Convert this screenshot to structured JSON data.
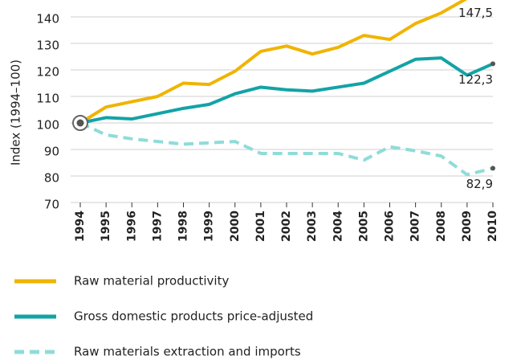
{
  "chart_data": {
    "type": "line",
    "y_label": "Index (1994–100)",
    "x": [
      "1994",
      "1995",
      "1996",
      "1997",
      "1998",
      "1999",
      "2000",
      "2001",
      "2002",
      "2003",
      "2004",
      "2005",
      "2006",
      "2007",
      "2008",
      "2009",
      "2010"
    ],
    "ylim": [
      70,
      150
    ],
    "yticks": [
      70,
      80,
      90,
      100,
      110,
      120,
      130,
      140
    ],
    "grid": true,
    "series": [
      {
        "name": "Raw material productivity",
        "color": "#f0b400",
        "dash": false,
        "values": [
          100,
          106,
          108,
          110,
          115,
          114.5,
          119.5,
          127,
          129,
          126,
          128.5,
          133,
          131.5,
          137.5,
          141.5,
          147,
          147.5
        ],
        "value_labels": [
          null,
          null,
          null,
          null,
          null,
          null,
          null,
          null,
          null,
          null,
          null,
          null,
          null,
          null,
          null,
          null,
          "147,5"
        ]
      },
      {
        "name": "Gross domestic products price-adjusted",
        "color": "#13a3a6",
        "dash": false,
        "values": [
          100,
          102,
          101.5,
          103.5,
          105.5,
          107,
          111,
          113.5,
          112.5,
          112,
          113.5,
          115,
          119.5,
          124,
          124.5,
          118,
          122.3
        ],
        "value_labels": [
          null,
          null,
          null,
          null,
          null,
          null,
          null,
          null,
          null,
          null,
          null,
          null,
          null,
          null,
          null,
          null,
          "122,3"
        ]
      },
      {
        "name": "Raw materials extraction and imports",
        "color": "#8fdcd8",
        "dash": true,
        "values": [
          100,
          95.5,
          94,
          93,
          92,
          92.5,
          93,
          88.5,
          88.5,
          88.5,
          88.5,
          86,
          91,
          89.5,
          87.5,
          80.5,
          82.9
        ],
        "value_labels": [
          null,
          null,
          null,
          null,
          null,
          null,
          null,
          null,
          null,
          null,
          null,
          null,
          null,
          null,
          null,
          null,
          "82,9"
        ]
      }
    ]
  }
}
